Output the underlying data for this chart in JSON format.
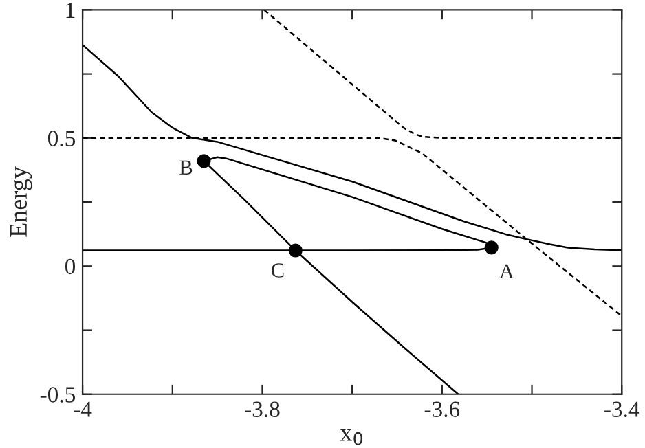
{
  "chart_data": {
    "type": "line",
    "xlabel": "x$_{0}$",
    "ylabel": "Energy",
    "xlim": [
      -4,
      -3.4
    ],
    "ylim": [
      -0.5,
      1
    ],
    "xticks": [
      -4,
      {
        "value": -3.9,
        "label": null
      },
      -3.8,
      {
        "value": -3.7,
        "label": null
      },
      -3.6,
      {
        "value": -3.5,
        "label": null
      },
      -3.4
    ],
    "yticks": [
      -0.5,
      {
        "value": -0.25,
        "label": null
      },
      0,
      {
        "value": 0.25,
        "label": null
      },
      0.5,
      {
        "value": 0.75,
        "label": null
      },
      1
    ],
    "grid": false,
    "legend": false,
    "series": [
      {
        "color": "#000000",
        "line_style": "solid",
        "x": [
          -4,
          -3.96,
          -3.923,
          -3.9,
          -3.878,
          -3.85,
          -3.7,
          -3.576,
          -3.53,
          -3.506,
          -3.48,
          -3.46,
          -3.43,
          -3.4
        ],
        "values": [
          0.863,
          0.74,
          0.6,
          0.54,
          0.5,
          0.485,
          0.33,
          0.175,
          0.125,
          0.105,
          0.085,
          0.072,
          0.065,
          0.062
        ]
      },
      {
        "color": "#000000",
        "line_style": "solid",
        "x": [
          -4,
          -3.763,
          -3.6,
          -3.56,
          -3.545
        ],
        "values": [
          0.061,
          0.061,
          0.062,
          0.064,
          0.072
        ]
      },
      {
        "color": "#000000",
        "line_style": "solid",
        "x": [
          -3.865,
          -3.85,
          -3.84,
          -3.7,
          -3.6,
          -3.545
        ],
        "values": [
          0.41,
          0.425,
          0.42,
          0.27,
          0.145,
          0.085
        ]
      },
      {
        "color": "#000000",
        "line_style": "solid",
        "x": [
          -3.865,
          -3.82,
          -3.763,
          -3.7,
          -3.64,
          -3.582
        ],
        "values": [
          0.41,
          0.26,
          0.061,
          -0.14,
          -0.325,
          -0.5
        ]
      },
      {
        "color": "#000000",
        "line_style": "dashed",
        "x": [
          -4,
          -3.67,
          -3.652,
          -3.64,
          -3.622,
          -3.506,
          -3.4
        ],
        "values": [
          0.5,
          0.5,
          0.49,
          0.47,
          0.44,
          0.105,
          -0.195
        ]
      },
      {
        "color": "#000000",
        "line_style": "dashed",
        "x": [
          -3.798,
          -3.643,
          -3.63,
          -3.622,
          -3.6,
          -3.4
        ],
        "values": [
          1.0,
          0.54,
          0.515,
          0.505,
          0.5,
          0.5
        ]
      },
      {
        "type": "scatter",
        "color": "#000000",
        "marker": "circle",
        "x": [
          -3.545,
          -3.865,
          -3.763
        ],
        "values": [
          0.072,
          0.41,
          0.061
        ]
      }
    ],
    "annotations": [
      {
        "text": "A",
        "x": -3.545,
        "y": 0.072
      },
      {
        "text": "B",
        "x": -3.865,
        "y": 0.41
      },
      {
        "text": "C",
        "x": -3.763,
        "y": 0.061
      }
    ]
  }
}
